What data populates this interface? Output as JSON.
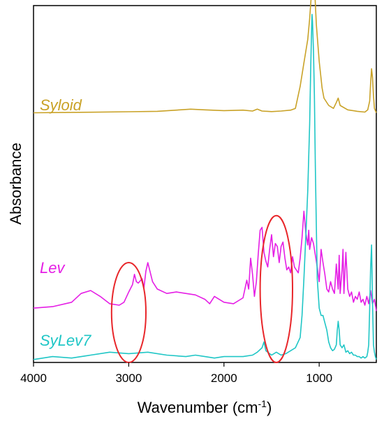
{
  "chart_data": {
    "type": "line",
    "title": "",
    "xlabel": "Wavenumber (cm",
    "xlabel_sup": "-1",
    "xlabel_tail": ")",
    "ylabel": "Absorbance",
    "xlim": [
      4000,
      400
    ],
    "x_reversed": true,
    "y_ticks_shown": false,
    "x_ticks": [
      4000,
      3000,
      2000,
      1000
    ],
    "x_tick_labels": [
      "4000",
      "3000",
      "2000",
      "1000"
    ],
    "grid": false,
    "legend": "inline labels",
    "series": [
      {
        "name": "Syloid",
        "color": "#C9A227",
        "x": [
          4000,
          3700,
          3400,
          3000,
          2700,
          2500,
          2350,
          2200,
          2000,
          1800,
          1700,
          1650,
          1600,
          1500,
          1400,
          1300,
          1250,
          1200,
          1160,
          1120,
          1100,
          1085,
          1075,
          1065,
          1050,
          1030,
          1000,
          970,
          950,
          900,
          850,
          820,
          800,
          780,
          700,
          600,
          520,
          490,
          470,
          460,
          450,
          440,
          430,
          420,
          400
        ],
        "y": [
          0,
          0.002,
          0.004,
          0.007,
          0.01,
          0.018,
          0.025,
          0.02,
          0.015,
          0.018,
          0.012,
          0.025,
          0.012,
          0.008,
          0.012,
          0.018,
          0.03,
          0.18,
          0.34,
          0.5,
          0.64,
          0.78,
          0.93,
          1.0,
          0.88,
          0.6,
          0.35,
          0.17,
          0.1,
          0.05,
          0.03,
          0.07,
          0.1,
          0.05,
          0.02,
          0.01,
          0.005,
          0.02,
          0.08,
          0.2,
          0.3,
          0.24,
          0.12,
          0.03,
          0.0
        ]
      },
      {
        "name": "Lev",
        "color": "#E51EE5",
        "x": [
          4000,
          3800,
          3600,
          3500,
          3400,
          3300,
          3200,
          3100,
          3050,
          3000,
          2960,
          2940,
          2920,
          2900,
          2860,
          2840,
          2820,
          2800,
          2750,
          2700,
          2600,
          2500,
          2400,
          2300,
          2200,
          2150,
          2100,
          2000,
          1900,
          1800,
          1760,
          1740,
          1720,
          1700,
          1680,
          1660,
          1640,
          1620,
          1600,
          1580,
          1560,
          1540,
          1520,
          1500,
          1480,
          1460,
          1440,
          1420,
          1400,
          1380,
          1360,
          1340,
          1320,
          1300,
          1280,
          1260,
          1240,
          1220,
          1200,
          1180,
          1160,
          1140,
          1120,
          1110,
          1100,
          1080,
          1060,
          1040,
          1020,
          1000,
          980,
          960,
          940,
          920,
          900,
          880,
          860,
          840,
          820,
          800,
          790,
          780,
          760,
          750,
          740,
          720,
          700,
          680,
          660,
          640,
          620,
          600,
          580,
          560,
          540,
          520,
          500,
          480,
          460,
          440,
          420,
          400
        ],
        "y": [
          0.02,
          0.03,
          0.06,
          0.12,
          0.14,
          0.1,
          0.05,
          0.04,
          0.06,
          0.13,
          0.18,
          0.25,
          0.2,
          0.19,
          0.22,
          0.16,
          0.27,
          0.33,
          0.2,
          0.15,
          0.12,
          0.13,
          0.12,
          0.11,
          0.08,
          0.05,
          0.1,
          0.06,
          0.05,
          0.09,
          0.21,
          0.15,
          0.36,
          0.25,
          0.1,
          0.2,
          0.39,
          0.55,
          0.57,
          0.4,
          0.34,
          0.3,
          0.42,
          0.52,
          0.37,
          0.46,
          0.44,
          0.33,
          0.44,
          0.47,
          0.36,
          0.28,
          0.3,
          0.26,
          0.37,
          0.3,
          0.28,
          0.26,
          0.36,
          0.5,
          0.68,
          0.53,
          0.45,
          0.55,
          0.42,
          0.5,
          0.46,
          0.38,
          0.3,
          0.2,
          0.42,
          0.33,
          0.25,
          0.15,
          0.13,
          0.2,
          0.15,
          0.12,
          0.32,
          0.15,
          0.38,
          0.12,
          0.28,
          0.42,
          0.12,
          0.4,
          0.15,
          0.1,
          0.13,
          0.06,
          0.1,
          0.08,
          0.13,
          0.06,
          0.08,
          0.04,
          0.1,
          0.05,
          0.14,
          0.05,
          0.08,
          0.0
        ]
      },
      {
        "name": "SyLev7",
        "color": "#1FC6C6",
        "x": [
          4000,
          3800,
          3600,
          3400,
          3200,
          3000,
          2800,
          2600,
          2400,
          2300,
          2200,
          2100,
          2000,
          1900,
          1800,
          1700,
          1650,
          1600,
          1580,
          1560,
          1500,
          1450,
          1400,
          1350,
          1300,
          1250,
          1200,
          1180,
          1160,
          1140,
          1120,
          1100,
          1090,
          1080,
          1075,
          1070,
          1060,
          1050,
          1040,
          1030,
          1020,
          1000,
          980,
          960,
          940,
          920,
          900,
          880,
          860,
          840,
          820,
          810,
          800,
          790,
          780,
          760,
          740,
          720,
          700,
          680,
          660,
          640,
          620,
          600,
          580,
          560,
          540,
          520,
          500,
          490,
          480,
          470,
          460,
          450,
          440,
          430,
          420,
          410,
          400
        ],
        "y": [
          0.0,
          0.02,
          0.01,
          0.03,
          0.05,
          0.04,
          0.05,
          0.03,
          0.02,
          0.03,
          0.02,
          0.01,
          0.02,
          0.02,
          0.02,
          0.03,
          0.05,
          0.08,
          0.12,
          0.06,
          0.03,
          0.05,
          0.03,
          0.04,
          0.06,
          0.08,
          0.15,
          0.3,
          0.55,
          0.85,
          1.15,
          1.6,
          1.95,
          2.25,
          2.35,
          2.3,
          2.1,
          1.8,
          1.3,
          0.9,
          0.55,
          0.35,
          0.3,
          0.3,
          0.25,
          0.2,
          0.12,
          0.08,
          0.06,
          0.07,
          0.1,
          0.2,
          0.26,
          0.2,
          0.1,
          0.08,
          0.1,
          0.05,
          0.06,
          0.04,
          0.05,
          0.03,
          0.03,
          0.02,
          0.02,
          0.01,
          0.02,
          0.01,
          0.02,
          0.05,
          0.1,
          0.35,
          0.62,
          0.78,
          0.4,
          0.1,
          0.05,
          0.02,
          0.0
        ]
      }
    ],
    "offsets": {
      "Syloid": 1.68,
      "Lev": 0.33,
      "SyLev7": 0.0
    },
    "y_range": [
      -0.02,
      2.41
    ],
    "annotations": [
      {
        "shape": "ellipse",
        "color": "#E8262A",
        "x_center": 3000,
        "x_halfwidth": 180,
        "y_center": 0.32,
        "y_halfwidth": 0.34
      },
      {
        "shape": "ellipse",
        "color": "#E8262A",
        "x_center": 1450,
        "x_halfwidth": 170,
        "y_center": 0.48,
        "y_halfwidth": 0.5
      }
    ]
  }
}
